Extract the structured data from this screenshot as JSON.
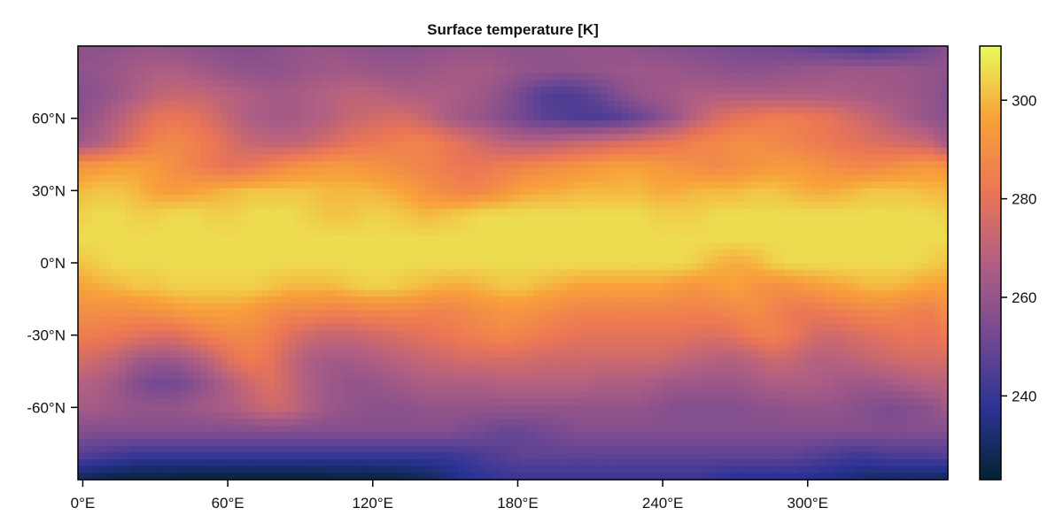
{
  "chart_data": {
    "type": "heatmap",
    "title": "Surface temperature [K]",
    "xlabel": "",
    "ylabel": "",
    "xlim": [
      -2,
      358
    ],
    "ylim": [
      -90,
      90
    ],
    "x_ticks": [
      {
        "value": 0,
        "label": "0°E"
      },
      {
        "value": 60,
        "label": "60°E"
      },
      {
        "value": 120,
        "label": "120°E"
      },
      {
        "value": 180,
        "label": "180°E"
      },
      {
        "value": 240,
        "label": "240°E"
      },
      {
        "value": 300,
        "label": "300°E"
      }
    ],
    "y_ticks": [
      {
        "value": 60,
        "label": "60°N"
      },
      {
        "value": 30,
        "label": "30°N"
      },
      {
        "value": 0,
        "label": "0°N"
      },
      {
        "value": -30,
        "label": "-30°N"
      },
      {
        "value": -60,
        "label": "-60°N"
      }
    ],
    "colorbar": {
      "colormap": "thermal",
      "range": [
        223,
        311
      ],
      "ticks": [
        {
          "value": 240,
          "label": "240"
        },
        {
          "value": 260,
          "label": "260"
        },
        {
          "value": 280,
          "label": "280"
        },
        {
          "value": 300,
          "label": "300"
        }
      ],
      "colors": [
        "#042333",
        "#2c3395",
        "#744992",
        "#b15f82",
        "#eb7655",
        "#f8a13a",
        "#e8fa5b"
      ]
    },
    "grid": false,
    "grid_shape": {
      "rows": 19,
      "cols": 45
    },
    "z": [
      [
        258,
        258,
        259,
        260,
        260,
        259,
        258,
        257,
        256,
        256,
        257,
        259,
        260,
        260,
        259,
        258,
        257,
        257,
        258,
        259,
        260,
        260,
        259,
        258,
        258,
        259,
        260,
        260,
        259,
        258,
        257,
        256,
        255,
        254,
        253,
        252,
        251,
        250,
        248,
        246,
        244,
        242,
        244,
        247,
        251
      ],
      [
        259,
        260,
        262,
        264,
        266,
        266,
        264,
        262,
        260,
        259,
        259,
        260,
        262,
        263,
        263,
        262,
        261,
        261,
        262,
        263,
        264,
        264,
        262,
        260,
        259,
        258,
        259,
        260,
        261,
        262,
        262,
        261,
        260,
        259,
        258,
        258,
        259,
        260,
        261,
        262,
        262,
        262,
        262,
        261,
        260
      ],
      [
        256,
        258,
        262,
        266,
        270,
        272,
        272,
        270,
        268,
        266,
        264,
        264,
        266,
        268,
        270,
        270,
        268,
        266,
        266,
        266,
        264,
        262,
        258,
        252,
        246,
        244,
        246,
        250,
        256,
        260,
        262,
        264,
        266,
        266,
        266,
        266,
        266,
        266,
        266,
        266,
        265,
        264,
        263,
        262,
        260
      ],
      [
        258,
        262,
        268,
        274,
        280,
        282,
        280,
        276,
        270,
        266,
        264,
        264,
        266,
        268,
        272,
        274,
        276,
        276,
        272,
        266,
        262,
        260,
        256,
        252,
        248,
        246,
        244,
        244,
        246,
        250,
        256,
        262,
        270,
        276,
        280,
        282,
        284,
        284,
        282,
        280,
        276,
        272,
        268,
        264,
        260
      ],
      [
        262,
        266,
        272,
        280,
        286,
        288,
        286,
        282,
        276,
        272,
        270,
        270,
        272,
        276,
        280,
        282,
        284,
        286,
        286,
        282,
        278,
        274,
        270,
        268,
        268,
        270,
        272,
        274,
        276,
        278,
        280,
        282,
        286,
        288,
        290,
        290,
        288,
        286,
        284,
        282,
        280,
        278,
        276,
        274,
        272
      ],
      [
        292,
        294,
        296,
        296,
        294,
        290,
        286,
        282,
        280,
        282,
        286,
        290,
        292,
        294,
        294,
        292,
        290,
        288,
        286,
        284,
        282,
        282,
        284,
        286,
        288,
        290,
        292,
        294,
        296,
        296,
        294,
        292,
        290,
        288,
        290,
        292,
        294,
        294,
        292,
        290,
        288,
        288,
        290,
        292,
        294
      ],
      [
        300,
        302,
        302,
        300,
        296,
        294,
        296,
        298,
        300,
        302,
        302,
        302,
        302,
        300,
        300,
        300,
        298,
        296,
        292,
        288,
        286,
        288,
        292,
        296,
        298,
        298,
        300,
        300,
        300,
        300,
        298,
        298,
        300,
        300,
        300,
        302,
        302,
        300,
        298,
        298,
        300,
        302,
        302,
        302,
        300
      ],
      [
        304,
        306,
        306,
        304,
        304,
        306,
        306,
        304,
        304,
        306,
        306,
        306,
        304,
        302,
        302,
        304,
        304,
        302,
        300,
        302,
        304,
        306,
        306,
        306,
        306,
        306,
        306,
        306,
        306,
        306,
        304,
        304,
        304,
        306,
        306,
        306,
        306,
        306,
        306,
        306,
        306,
        306,
        306,
        306,
        306
      ],
      [
        306,
        306,
        306,
        306,
        306,
        306,
        306,
        306,
        306,
        306,
        306,
        306,
        306,
        306,
        306,
        306,
        306,
        306,
        306,
        306,
        306,
        306,
        306,
        306,
        306,
        306,
        306,
        306,
        306,
        306,
        306,
        306,
        306,
        306,
        306,
        306,
        306,
        306,
        306,
        306,
        306,
        306,
        306,
        306,
        306
      ],
      [
        302,
        304,
        306,
        306,
        306,
        306,
        306,
        306,
        306,
        306,
        306,
        306,
        306,
        306,
        306,
        306,
        306,
        306,
        306,
        306,
        306,
        306,
        306,
        306,
        306,
        306,
        306,
        306,
        306,
        306,
        306,
        306,
        304,
        300,
        298,
        300,
        304,
        306,
        306,
        306,
        306,
        306,
        306,
        306,
        304
      ],
      [
        296,
        298,
        300,
        302,
        302,
        304,
        304,
        304,
        304,
        304,
        302,
        300,
        300,
        300,
        302,
        304,
        304,
        302,
        300,
        298,
        298,
        300,
        302,
        302,
        300,
        298,
        296,
        296,
        296,
        296,
        296,
        294,
        292,
        294,
        296,
        292,
        290,
        292,
        294,
        296,
        298,
        300,
        300,
        298,
        296
      ],
      [
        290,
        290,
        290,
        290,
        292,
        294,
        296,
        296,
        296,
        294,
        290,
        288,
        288,
        286,
        286,
        288,
        288,
        288,
        286,
        286,
        288,
        290,
        292,
        292,
        290,
        288,
        286,
        286,
        286,
        286,
        286,
        286,
        286,
        286,
        288,
        290,
        286,
        282,
        282,
        284,
        286,
        288,
        288,
        286,
        284
      ],
      [
        284,
        284,
        282,
        280,
        278,
        278,
        282,
        286,
        288,
        288,
        284,
        278,
        274,
        272,
        272,
        274,
        276,
        278,
        280,
        282,
        284,
        286,
        288,
        286,
        284,
        282,
        280,
        280,
        280,
        280,
        280,
        280,
        278,
        278,
        280,
        284,
        286,
        282,
        276,
        274,
        276,
        278,
        280,
        282,
        280
      ],
      [
        276,
        274,
        270,
        264,
        262,
        262,
        266,
        272,
        280,
        284,
        280,
        272,
        266,
        264,
        264,
        266,
        268,
        270,
        272,
        274,
        276,
        276,
        276,
        276,
        274,
        274,
        274,
        274,
        274,
        274,
        274,
        272,
        270,
        268,
        268,
        270,
        274,
        272,
        268,
        268,
        270,
        272,
        274,
        276,
        276
      ],
      [
        268,
        266,
        262,
        256,
        252,
        252,
        256,
        262,
        268,
        274,
        278,
        272,
        266,
        262,
        260,
        260,
        262,
        264,
        266,
        266,
        266,
        266,
        268,
        268,
        268,
        268,
        268,
        266,
        266,
        266,
        264,
        262,
        262,
        262,
        262,
        264,
        266,
        266,
        266,
        264,
        262,
        262,
        264,
        266,
        268
      ],
      [
        264,
        264,
        262,
        260,
        260,
        260,
        262,
        264,
        266,
        270,
        274,
        272,
        266,
        262,
        260,
        258,
        258,
        258,
        260,
        260,
        260,
        260,
        260,
        260,
        260,
        260,
        260,
        260,
        260,
        260,
        258,
        256,
        256,
        256,
        256,
        258,
        258,
        260,
        260,
        260,
        258,
        256,
        254,
        256,
        258
      ],
      [
        256,
        256,
        256,
        256,
        256,
        256,
        256,
        256,
        256,
        256,
        256,
        256,
        256,
        256,
        256,
        256,
        256,
        256,
        256,
        256,
        254,
        252,
        250,
        250,
        252,
        254,
        256,
        256,
        256,
        256,
        256,
        256,
        256,
        256,
        256,
        256,
        256,
        256,
        256,
        256,
        256,
        256,
        256,
        256,
        256
      ],
      [
        246,
        244,
        242,
        240,
        240,
        240,
        240,
        240,
        240,
        240,
        240,
        240,
        240,
        240,
        240,
        240,
        240,
        240,
        240,
        240,
        242,
        244,
        246,
        248,
        248,
        248,
        248,
        248,
        248,
        248,
        248,
        248,
        248,
        248,
        248,
        248,
        248,
        248,
        246,
        244,
        242,
        242,
        244,
        244,
        244
      ],
      [
        228,
        226,
        225,
        224,
        224,
        224,
        223,
        223,
        223,
        223,
        223,
        223,
        223,
        224,
        224,
        224,
        225,
        226,
        228,
        232,
        236,
        238,
        240,
        240,
        240,
        240,
        240,
        240,
        240,
        240,
        240,
        240,
        240,
        238,
        236,
        236,
        236,
        236,
        235,
        234,
        232,
        230,
        230,
        230,
        230
      ]
    ]
  }
}
